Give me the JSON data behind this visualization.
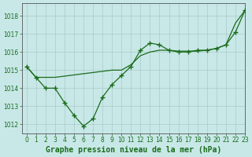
{
  "title": "Graphe pression niveau de la mer (hPa)",
  "bg_color": "#c8e8e8",
  "grid_color": "#aacaca",
  "line_color": "#1a6b1a",
  "marker_color": "#1a6b1a",
  "xlim": [
    -0.5,
    23
  ],
  "ylim": [
    1011.5,
    1018.7
  ],
  "xticks": [
    0,
    1,
    2,
    3,
    4,
    5,
    6,
    7,
    8,
    9,
    10,
    11,
    12,
    13,
    14,
    15,
    16,
    17,
    18,
    19,
    20,
    21,
    22,
    23
  ],
  "yticks": [
    1012,
    1013,
    1014,
    1015,
    1016,
    1017,
    1018
  ],
  "series1_x": [
    0,
    1,
    2,
    3,
    4,
    5,
    6,
    7,
    8,
    9,
    10,
    11,
    12,
    13,
    14,
    15,
    16,
    17,
    18,
    19,
    20,
    21,
    22,
    23
  ],
  "series1_y": [
    1015.2,
    1014.6,
    1014.0,
    1014.0,
    1013.2,
    1012.5,
    1011.9,
    1012.3,
    1013.5,
    1014.2,
    1014.7,
    1015.2,
    1016.1,
    1016.5,
    1016.4,
    1016.1,
    1016.0,
    1016.0,
    1016.1,
    1016.1,
    1016.2,
    1016.4,
    1017.1,
    1018.3
  ],
  "series2_x": [
    0,
    1,
    2,
    3,
    9,
    10,
    11,
    12,
    13,
    14,
    15,
    16,
    17,
    18,
    19,
    20,
    21,
    22,
    23
  ],
  "series2_y": [
    1015.2,
    1014.6,
    1014.6,
    1014.6,
    1015.0,
    1015.0,
    1015.3,
    1015.8,
    1016.0,
    1016.1,
    1016.1,
    1016.05,
    1016.05,
    1016.05,
    1016.1,
    1016.2,
    1016.4,
    1017.6,
    1018.3
  ],
  "title_fontsize": 7.0,
  "tick_fontsize": 5.5,
  "label_color": "#1a6b1a",
  "axis_color": "#555555"
}
